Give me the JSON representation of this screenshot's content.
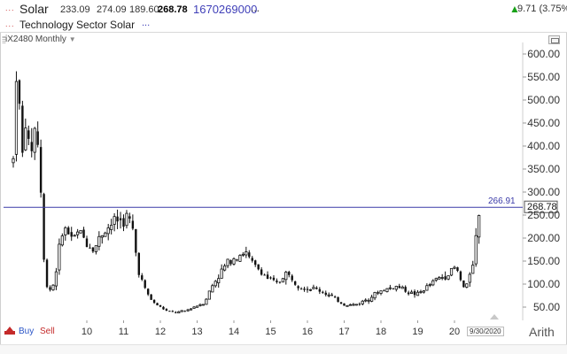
{
  "header": {
    "symbol_name": "Solar",
    "symbol_dots": "...",
    "open": "233.09",
    "high": "274.09",
    "low": "189.60",
    "last": "268.78",
    "volume": "1670269000",
    "more": "...",
    "change_arrow": "up-arrow-icon",
    "change": "9.71 (3.75%)",
    "sector_dots": "...",
    "sector_name": "Technology Sector Solar",
    "sector_more": "..."
  },
  "plot": {
    "label": "iX2480 Monthly",
    "caret": "▼"
  },
  "footer": {
    "buy": "Buy",
    "sell": "Sell",
    "scale_mode": "Arith",
    "date": "9/30/2020"
  },
  "colors": {
    "candle": "#111111",
    "price_line": "#3a3aa8",
    "up_arrow": "#18a118",
    "sell_red": "#c42a2a",
    "buy_blue": "#2a55c7"
  },
  "chart_data": {
    "type": "candlestick",
    "interval": "monthly",
    "x_tick_labels": [
      "10",
      "11",
      "12",
      "13",
      "14",
      "15",
      "16",
      "17",
      "18",
      "19",
      "20"
    ],
    "y_tick_labels": [
      "50.00",
      "100.00",
      "150.00",
      "200.00",
      "250.00",
      "300.00",
      "350.00",
      "400.00",
      "450.00",
      "500.00",
      "550.00",
      "600.00"
    ],
    "ylim": [
      20,
      630
    ],
    "horizontal_line": {
      "value": 266.91,
      "label": "266.91"
    },
    "last_price_label": "268.78",
    "grid": false,
    "keypoints": [
      [
        2008.0,
        370
      ],
      [
        2008.05,
        520
      ],
      [
        2008.1,
        590
      ],
      [
        2008.15,
        500
      ],
      [
        2008.25,
        380
      ],
      [
        2008.35,
        470
      ],
      [
        2008.45,
        360
      ],
      [
        2008.55,
        440
      ],
      [
        2008.65,
        430
      ],
      [
        2008.75,
        300
      ],
      [
        2008.85,
        120
      ],
      [
        2008.95,
        85
      ],
      [
        2009.1,
        100
      ],
      [
        2009.2,
        150
      ],
      [
        2009.35,
        225
      ],
      [
        2009.5,
        210
      ],
      [
        2009.65,
        200
      ],
      [
        2009.8,
        215
      ],
      [
        2010.0,
        190
      ],
      [
        2010.2,
        175
      ],
      [
        2010.4,
        210
      ],
      [
        2010.6,
        225
      ],
      [
        2010.8,
        240
      ],
      [
        2011.0,
        235
      ],
      [
        2011.1,
        250
      ],
      [
        2011.25,
        215
      ],
      [
        2011.4,
        130
      ],
      [
        2011.6,
        85
      ],
      [
        2011.8,
        60
      ],
      [
        2012.0,
        50
      ],
      [
        2012.2,
        40
      ],
      [
        2012.45,
        38
      ],
      [
        2012.7,
        42
      ],
      [
        2012.9,
        50
      ],
      [
        2013.2,
        60
      ],
      [
        2013.4,
        95
      ],
      [
        2013.6,
        120
      ],
      [
        2013.85,
        150
      ],
      [
        2014.05,
        160
      ],
      [
        2014.3,
        170
      ],
      [
        2014.5,
        145
      ],
      [
        2014.7,
        130
      ],
      [
        2014.95,
        110
      ],
      [
        2015.2,
        100
      ],
      [
        2015.4,
        125
      ],
      [
        2015.6,
        110
      ],
      [
        2015.8,
        95
      ],
      [
        2016.0,
        90
      ],
      [
        2016.2,
        90
      ],
      [
        2016.5,
        80
      ],
      [
        2016.8,
        65
      ],
      [
        2017.0,
        55
      ],
      [
        2017.3,
        55
      ],
      [
        2017.5,
        62
      ],
      [
        2017.7,
        72
      ],
      [
        2018.0,
        85
      ],
      [
        2018.2,
        90
      ],
      [
        2018.4,
        95
      ],
      [
        2018.6,
        90
      ],
      [
        2018.8,
        80
      ],
      [
        2019.0,
        78
      ],
      [
        2019.2,
        90
      ],
      [
        2019.5,
        110
      ],
      [
        2019.8,
        120
      ],
      [
        2020.0,
        135
      ],
      [
        2020.1,
        125
      ],
      [
        2020.2,
        100
      ],
      [
        2020.3,
        85
      ],
      [
        2020.4,
        120
      ],
      [
        2020.5,
        150
      ],
      [
        2020.6,
        210
      ],
      [
        2020.7,
        268.78
      ]
    ]
  }
}
